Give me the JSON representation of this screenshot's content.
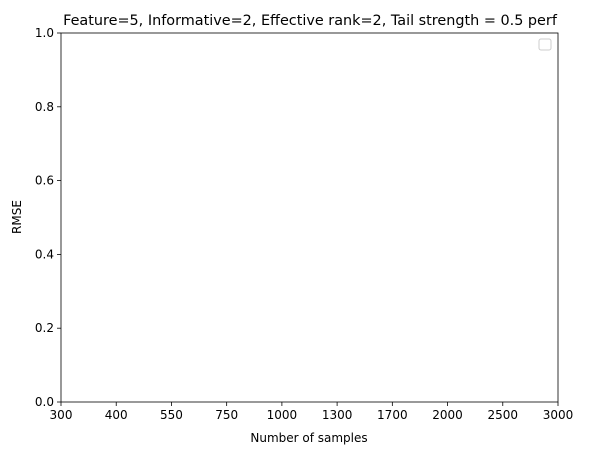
{
  "chart_data": {
    "type": "line",
    "title": "Feature=5, Informative=2, Effective rank=2, Tail strength = 0.5 perf",
    "xlabel": "Number of samples",
    "ylabel": "RMSE",
    "categories": [
      "300",
      "400",
      "550",
      "750",
      "1000",
      "1300",
      "1700",
      "2000",
      "2500",
      "3000"
    ],
    "yticks": [
      "0.0",
      "0.2",
      "0.4",
      "0.6",
      "0.8",
      "1.0"
    ],
    "ylim": [
      0,
      1
    ],
    "series": [],
    "grid": false,
    "legend": "top-right"
  }
}
